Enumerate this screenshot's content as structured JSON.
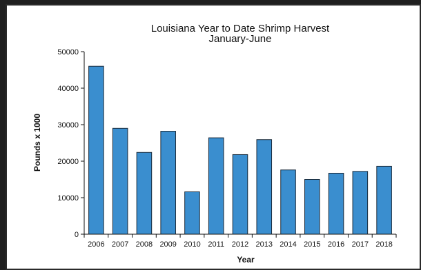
{
  "chart_data": {
    "type": "bar",
    "title": "Louisiana Year to Date Shrimp Harvest",
    "subtitle": "January-June",
    "xlabel": "Year",
    "ylabel": "Pounds x 1000",
    "categories": [
      "2006",
      "2007",
      "2008",
      "2009",
      "2010",
      "2011",
      "2012",
      "2013",
      "2014",
      "2015",
      "2016",
      "2017",
      "2018"
    ],
    "values": [
      46000,
      29000,
      22400,
      28200,
      11600,
      26400,
      21800,
      25900,
      17600,
      15000,
      16700,
      17200,
      18600
    ],
    "ylim": [
      0,
      50000
    ],
    "yticks": [
      0,
      10000,
      20000,
      30000,
      40000,
      50000
    ],
    "grid": false,
    "legend": "none",
    "bar_color": "#3a8ecf",
    "bar_edge_color": "#1a2a3a"
  }
}
